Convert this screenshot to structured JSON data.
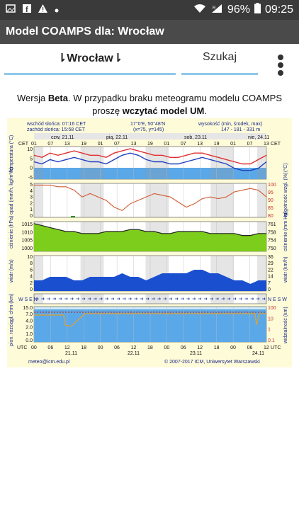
{
  "statusbar": {
    "battery": "96%",
    "time": "09:25",
    "signal_label": "R"
  },
  "appbar": {
    "title": "Model COAMPS dla: Wrocław"
  },
  "tabs": {
    "city": "⇂Wrocław⇂",
    "search": "Szukaj"
  },
  "notice": {
    "part1": "Wersja ",
    "beta": "Beta",
    "part2": ". W przypadku braku meteogramu modelu COAMPS proszę ",
    "bold": "wczytać model UM",
    "part3": "."
  },
  "meteogram": {
    "sunrise": "wschód słońca: 07:16 CET",
    "sunset": "zachód słońca: 15:58 CET",
    "coords": "17°0'E, 50°48'N",
    "grid": "(x=75, y=145)",
    "height_label": "wysokość (min, środek, max)",
    "height_values": "147 - 181 - 331 m",
    "cet": "CET",
    "utc": "UTC",
    "top_hours": [
      "01",
      "07",
      "13",
      "19",
      "01",
      "07",
      "13",
      "19",
      "01",
      "07",
      "13",
      "19",
      "01",
      "07",
      "13"
    ],
    "bottom_hours": [
      "00",
      "06",
      "12",
      "18",
      "00",
      "06",
      "12",
      "18",
      "00",
      "06",
      "12",
      "18",
      "00",
      "06",
      "12"
    ],
    "days_top": [
      "czw, 21.11",
      "pią, 22.11",
      "sob, 23.11",
      "nie, 24.11"
    ],
    "days_bottom": [
      "21.11",
      "22.11",
      "23.11",
      "24.11"
    ],
    "panels": {
      "temp": {
        "left_label": "temperatura (°C)",
        "right_label": "(°C)",
        "ticks": [
          "10",
          "5",
          "0",
          "-5"
        ]
      },
      "precip": {
        "left_label": "opad (mm/h, kg/m²/h)",
        "right_label": "wilgotność wzgl. (%)",
        "left_ticks": [
          "5",
          "4",
          "3",
          "2",
          "1",
          "0"
        ],
        "right_ticks": [
          "100",
          "95",
          "90",
          "85",
          "80"
        ]
      },
      "pressure": {
        "left_label": "ciśnienie (hPa)",
        "right_label": "ciśnienie (mm Hg)",
        "left_ticks": [
          "1015",
          "1010",
          "1005",
          "1000"
        ],
        "right_ticks": [
          "761",
          "758",
          "754",
          "750"
        ]
      },
      "wind": {
        "left_label": "wiatr (m/s)",
        "right_label": "wiatr (km/h)",
        "left_ticks": [
          "10",
          "8",
          "6",
          "4",
          "2",
          "0"
        ],
        "right_ticks": [
          "36",
          "29",
          "22",
          "14",
          "7",
          "0"
        ]
      },
      "dir": {
        "left_label": "W S E N",
        "right_label": "N E S W"
      },
      "vis": {
        "left_label": "pion. rozciągł. chm (km)",
        "right_label": "widzialność (km)",
        "left_ticks": [
          "15.0",
          "7.0",
          "4.0",
          "2.0",
          "1.0",
          "0.0"
        ],
        "right_ticks": [
          "100",
          "10",
          "1",
          "0.1"
        ]
      }
    },
    "footer_left": "meteo@icm.edu.pl",
    "footer_right": "© 2007-2017 ICM, Uniwersytet Warszawski"
  },
  "chart_data": [
    {
      "type": "line",
      "title": "temperatura",
      "ylabel": "temperatura (°C)",
      "ylim": [
        -5,
        10
      ],
      "series": [
        {
          "color": "#e03030",
          "values": [
            6,
            5,
            7,
            6,
            7,
            8,
            7,
            6,
            6,
            5,
            7,
            8,
            9,
            8,
            7,
            6,
            6,
            5,
            5,
            6,
            7,
            7,
            6,
            5,
            4,
            3,
            2,
            2,
            4,
            6
          ]
        },
        {
          "color": "#2040c0",
          "values": [
            3,
            2,
            4,
            3,
            4,
            5,
            4,
            3,
            3,
            2,
            4,
            6,
            7,
            6,
            4,
            3,
            3,
            2,
            2,
            3,
            4,
            5,
            4,
            3,
            2,
            0,
            -1,
            -1,
            0,
            3
          ]
        }
      ]
    },
    {
      "type": "line",
      "title": "opad",
      "ylabel": "opad (mm/h, kg/m²/h)",
      "ylim": [
        0,
        5
      ],
      "series": [
        {
          "color": "#d05a30",
          "values": [
            99,
            99,
            99,
            98,
            98,
            96,
            92,
            94,
            92,
            90,
            86,
            84,
            88,
            90,
            92,
            94,
            93,
            92,
            89,
            86,
            88,
            91,
            92,
            91,
            92,
            95,
            96,
            97,
            96,
            92
          ]
        }
      ]
    },
    {
      "type": "area",
      "title": "ciśnienie",
      "ylabel": "ciśnienie (hPa)",
      "ylim": [
        1000,
        1015
      ],
      "series": [
        {
          "color": "#000000",
          "values": [
            1014,
            1013,
            1012,
            1011,
            1010,
            1010,
            1009,
            1009,
            1009,
            1010,
            1010,
            1010,
            1011,
            1011,
            1010,
            1010,
            1009,
            1009,
            1010,
            1010,
            1010,
            1010,
            1009,
            1009,
            1009,
            1009,
            1008,
            1008,
            1009,
            1009
          ]
        }
      ]
    },
    {
      "type": "area",
      "title": "wiatr",
      "ylabel": "wiatr (m/s)",
      "ylim": [
        0,
        10
      ],
      "series": [
        {
          "color": "#1a4fd0",
          "values": [
            3,
            3,
            4,
            4,
            4,
            3,
            3,
            4,
            4,
            4,
            4,
            5,
            4,
            4,
            3,
            4,
            5,
            5,
            5,
            5,
            6,
            6,
            5,
            5,
            4,
            3,
            3,
            2,
            3,
            3
          ]
        }
      ]
    }
  ]
}
